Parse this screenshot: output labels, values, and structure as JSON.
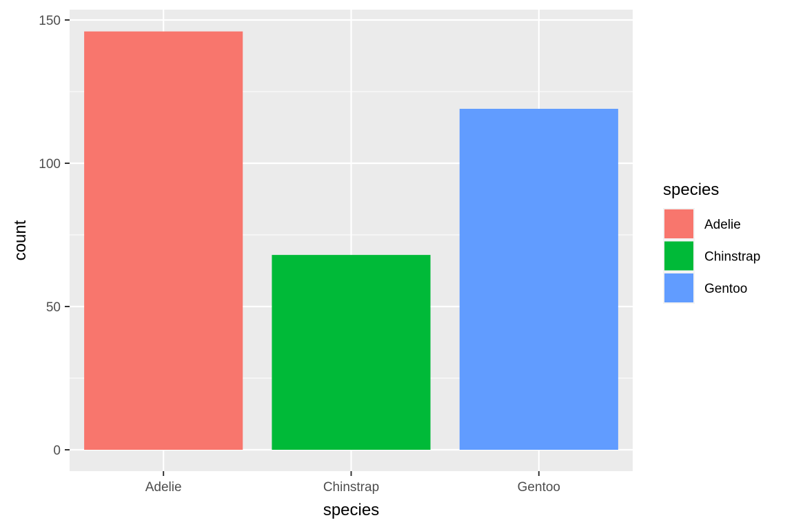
{
  "chart_data": {
    "type": "bar",
    "categories": [
      "Adelie",
      "Chinstrap",
      "Gentoo"
    ],
    "values": [
      146,
      68,
      119
    ],
    "colors": [
      "#F8766D",
      "#00BA38",
      "#619CFF"
    ],
    "xlabel": "species",
    "ylabel": "count",
    "ylim": [
      0,
      150
    ],
    "yticks": [
      0,
      50,
      100,
      150
    ],
    "grid": true,
    "legend": {
      "title": "species",
      "placement": "right",
      "entries": [
        "Adelie",
        "Chinstrap",
        "Gentoo"
      ]
    }
  }
}
